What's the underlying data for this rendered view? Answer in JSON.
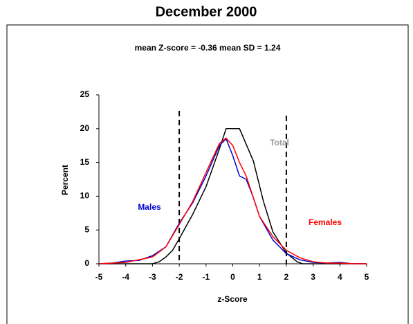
{
  "chart_data": {
    "type": "line",
    "title": "December 2000",
    "subtitle": "mean Z-score = -0.36  mean SD = 1.24",
    "x_label": "z-Score",
    "y_label": "Percent",
    "xlim": [
      -5,
      5
    ],
    "ylim": [
      0,
      25
    ],
    "xticks": [
      -5,
      -4,
      -3,
      -2,
      -1,
      0,
      1,
      2,
      3,
      4,
      5
    ],
    "yticks": [
      0,
      5,
      10,
      15,
      20,
      25
    ],
    "vlines": [
      -2,
      2
    ],
    "series": [
      {
        "name": "Total",
        "color": "#000000",
        "label_color": "#999999",
        "x": [
          -5,
          -3,
          -2.75,
          -2.5,
          -2.25,
          -2,
          -1.5,
          -1,
          -0.5,
          -0.25,
          0.25,
          0.77,
          1.14,
          1.5,
          2,
          2.4,
          2.6,
          5
        ],
        "values": [
          0,
          0,
          0.3,
          1,
          2,
          3.7,
          7.3,
          11.4,
          17,
          20,
          20,
          15.2,
          9.3,
          4.7,
          1.6,
          0.3,
          0,
          0
        ]
      },
      {
        "name": "Males",
        "color": "#0000cc",
        "label_color": "#0000cc",
        "x": [
          -5,
          -4.5,
          -4,
          -3.5,
          -3,
          -2.5,
          -2,
          -1.5,
          -1,
          -0.5,
          -0.25,
          0,
          0.25,
          0.5,
          0.75,
          1,
          1.5,
          2,
          2.5,
          3,
          3.5,
          4,
          4.5,
          5
        ],
        "values": [
          0,
          0.1,
          0.4,
          0.5,
          1.2,
          2.5,
          6,
          9,
          13,
          17.5,
          18.5,
          16,
          13,
          12.5,
          10,
          7,
          3.5,
          1.5,
          0.6,
          0.2,
          0.1,
          0.2,
          0,
          0
        ]
      },
      {
        "name": "Females",
        "color": "#ff0000",
        "label_color": "#ff0000",
        "x": [
          -5,
          -4.5,
          -4,
          -3.5,
          -3,
          -2.5,
          -2,
          -1.5,
          -1,
          -0.5,
          -0.25,
          0,
          0.25,
          0.5,
          0.75,
          1,
          1.5,
          2,
          2.5,
          3,
          3.5,
          4,
          4.5,
          5
        ],
        "values": [
          0,
          0.1,
          0.2,
          0.6,
          1,
          2.5,
          5.8,
          9.2,
          13.5,
          17.8,
          18.6,
          17.5,
          15,
          13,
          10,
          7,
          4,
          2,
          0.9,
          0.3,
          0.1,
          0.1,
          0,
          0
        ]
      }
    ]
  }
}
